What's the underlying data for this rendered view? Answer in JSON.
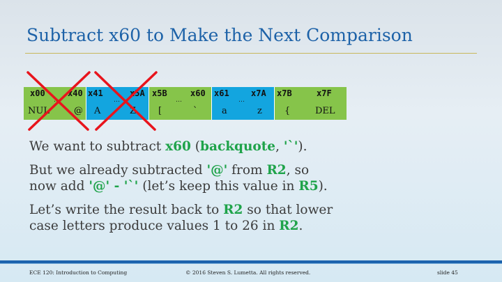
{
  "title": "Subtract x60 to Make the Next Comparison",
  "ascii_table": [
    {
      "color": "green",
      "from_code": "x00",
      "to_code": "x40",
      "from_char": "NUL",
      "to_char": "@",
      "crossed": true
    },
    {
      "color": "blue",
      "from_code": "x41",
      "to_code": "x5A",
      "from_char": "A",
      "to_char": "Z",
      "crossed": true
    },
    {
      "color": "green",
      "from_code": "x5B",
      "to_code": "x60",
      "from_char": "[",
      "to_char": "`",
      "crossed": false
    },
    {
      "color": "blue",
      "from_code": "x61",
      "to_code": "x7A",
      "from_char": "a",
      "to_char": "z",
      "crossed": false
    },
    {
      "color": "green",
      "from_code": "x7B",
      "to_code": "x7F",
      "from_char": "{",
      "to_char": "DEL",
      "crossed": false
    }
  ],
  "ellipsis": "…",
  "colors": {
    "green": "#86c44a",
    "blue": "#13a5df",
    "cross": "#e8141c",
    "title": "#1d62a8",
    "highlight": "#1fa34a"
  },
  "body": {
    "p1": {
      "a": "We want to subtract ",
      "b": "x60",
      "c": " (",
      "d": "backquote",
      "e": ", ",
      "f": "'`'",
      "g": ")."
    },
    "p2": {
      "a": "But we already subtracted ",
      "b": "'@'",
      "c": " from ",
      "d": "R2",
      "e": ", so",
      "f": "now add ",
      "g": "'@' - '`'",
      "h": " (let’s keep this value in ",
      "i": "R5",
      "j": ")."
    },
    "p3": {
      "a": "Let’s write the result back to ",
      "b": "R2",
      "c": " so that lower",
      "d": "case letters produce values 1 to 26 in ",
      "e": "R2",
      "f": "."
    }
  },
  "footer": {
    "course": "ECE 120: Introduction to Computing",
    "copyright": "© 2016 Steven S. Lumetta.  All rights reserved.",
    "slide": "slide 45"
  }
}
